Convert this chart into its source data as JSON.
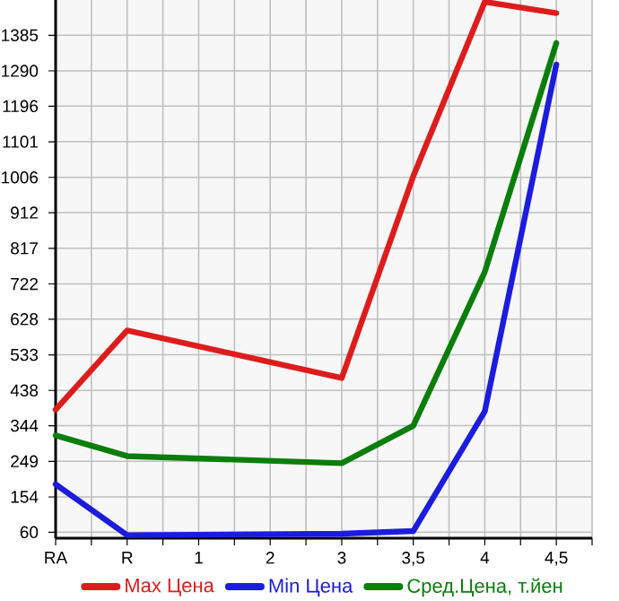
{
  "chart_data": {
    "type": "line",
    "categories": [
      "RA",
      "R",
      "1",
      "2",
      "3",
      "3,5",
      "4",
      "4,5"
    ],
    "series": [
      {
        "name": "Max Цена",
        "color": "#dd1c1c",
        "values": [
          387,
          598,
          null,
          null,
          471,
          1009,
          1474,
          1444
        ]
      },
      {
        "name": "Min Цена",
        "color": "#1c1cdd",
        "values": [
          188,
          52,
          null,
          null,
          56,
          63,
          382,
          1307
        ]
      },
      {
        "name": "Сред.Цена, т.йен",
        "color": "#0a7d0a",
        "values": [
          318,
          263,
          null,
          null,
          244,
          344,
          754,
          1364
        ]
      }
    ],
    "ylim": [
      44,
      1479
    ],
    "yticks": [
      60,
      154,
      249,
      344,
      438,
      533,
      628,
      722,
      817,
      912,
      1006,
      1101,
      1196,
      1290,
      1385
    ],
    "grid": true,
    "legend": "bottom",
    "marker": "none",
    "line_style": "solid"
  }
}
